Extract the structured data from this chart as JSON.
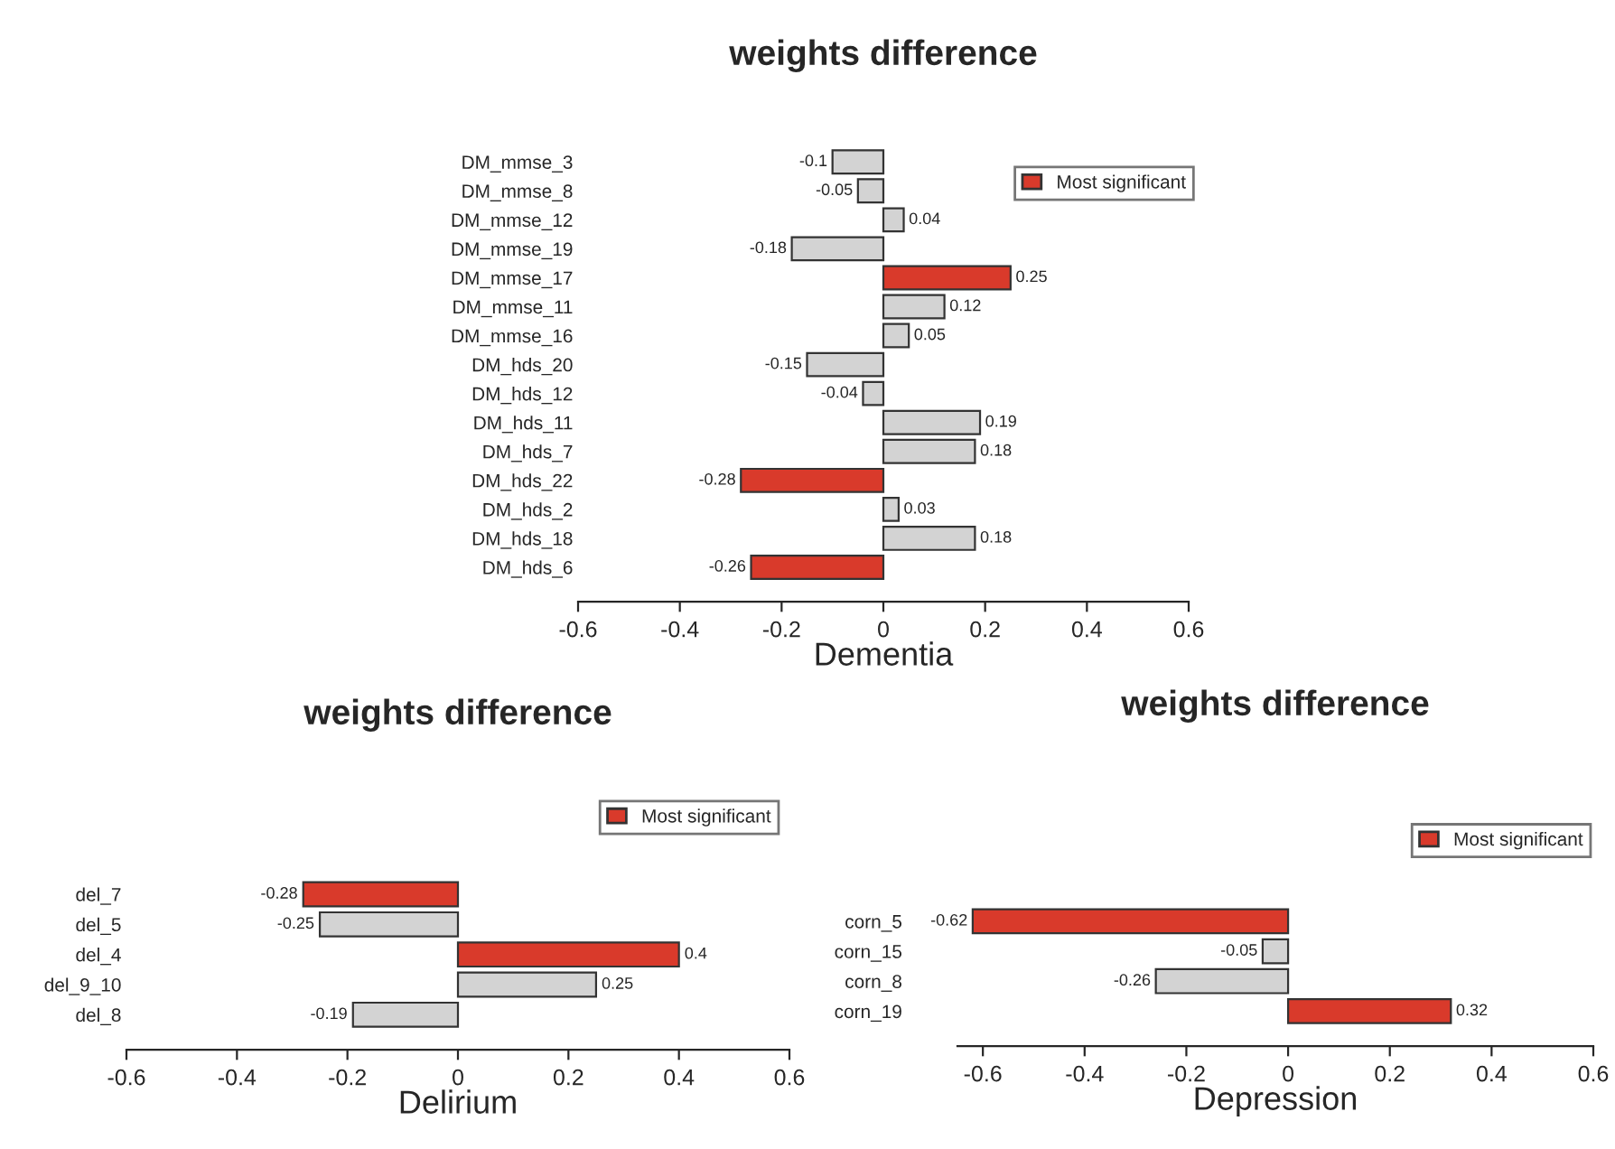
{
  "chart_data": [
    {
      "type": "bar",
      "orientation": "horizontal",
      "title": "weights difference",
      "xlabel": "Dementia",
      "categories": [
        "DM_mmse_3",
        "DM_mmse_8",
        "DM_mmse_12",
        "DM_mmse_19",
        "DM_mmse_17",
        "DM_mmse_11",
        "DM_mmse_16",
        "DM_hds_20",
        "DM_hds_12",
        "DM_hds_11",
        "DM_hds_7",
        "DM_hds_22",
        "DM_hds_2",
        "DM_hds_18",
        "DM_hds_6"
      ],
      "series": [
        {
          "name": "Most significant",
          "color": "#d93a2b",
          "values": [
            -0.1,
            -0.05,
            0.04,
            -0.18,
            0.25,
            0.12,
            0.05,
            -0.15,
            -0.04,
            0.19,
            0.18,
            -0.28,
            0.03,
            0.18,
            -0.26
          ],
          "colors": [
            "#d3d3d3",
            "#d3d3d3",
            "#d3d3d3",
            "#d3d3d3",
            "#d93a2b",
            "#d3d3d3",
            "#d3d3d3",
            "#d3d3d3",
            "#d3d3d3",
            "#d3d3d3",
            "#d3d3d3",
            "#d93a2b",
            "#d3d3d3",
            "#d3d3d3",
            "#d93a2b"
          ]
        }
      ],
      "xlim": [
        -0.6,
        0.6
      ],
      "xticks": [
        -0.6,
        -0.4,
        -0.2,
        0,
        0.2,
        0.4,
        0.6
      ],
      "data_labels": true,
      "legend": "top right",
      "grid": false
    },
    {
      "type": "bar",
      "orientation": "horizontal",
      "title": "weights difference",
      "xlabel": "Delirium",
      "categories": [
        "del_7",
        "del_5",
        "del_4",
        "del_9_10",
        "del_8"
      ],
      "series": [
        {
          "name": "Most significant",
          "color": "#d93a2b",
          "values": [
            -0.28,
            -0.25,
            0.4,
            0.25,
            -0.19
          ],
          "colors": [
            "#d93a2b",
            "#d3d3d3",
            "#d93a2b",
            "#d3d3d3",
            "#d3d3d3"
          ]
        }
      ],
      "xlim": [
        -0.6,
        0.6
      ],
      "xticks": [
        -0.6,
        -0.4,
        -0.2,
        0,
        0.2,
        0.4,
        0.6
      ],
      "data_labels": true,
      "legend": "top right",
      "grid": false
    },
    {
      "type": "bar",
      "orientation": "horizontal",
      "title": "weights difference",
      "xlabel": "Depression",
      "categories": [
        "corn_5",
        "corn_15",
        "corn_8",
        "corn_19"
      ],
      "series": [
        {
          "name": "Most significant",
          "color": "#d93a2b",
          "values": [
            -0.62,
            -0.05,
            -0.26,
            0.32
          ],
          "colors": [
            "#d93a2b",
            "#d3d3d3",
            "#d3d3d3",
            "#d93a2b"
          ]
        }
      ],
      "xlim": [
        -0.65,
        0.6
      ],
      "xticks": [
        -0.6,
        -0.4,
        -0.2,
        0,
        0.2,
        0.4,
        0.6
      ],
      "data_labels": true,
      "legend": "top right",
      "grid": false
    }
  ]
}
